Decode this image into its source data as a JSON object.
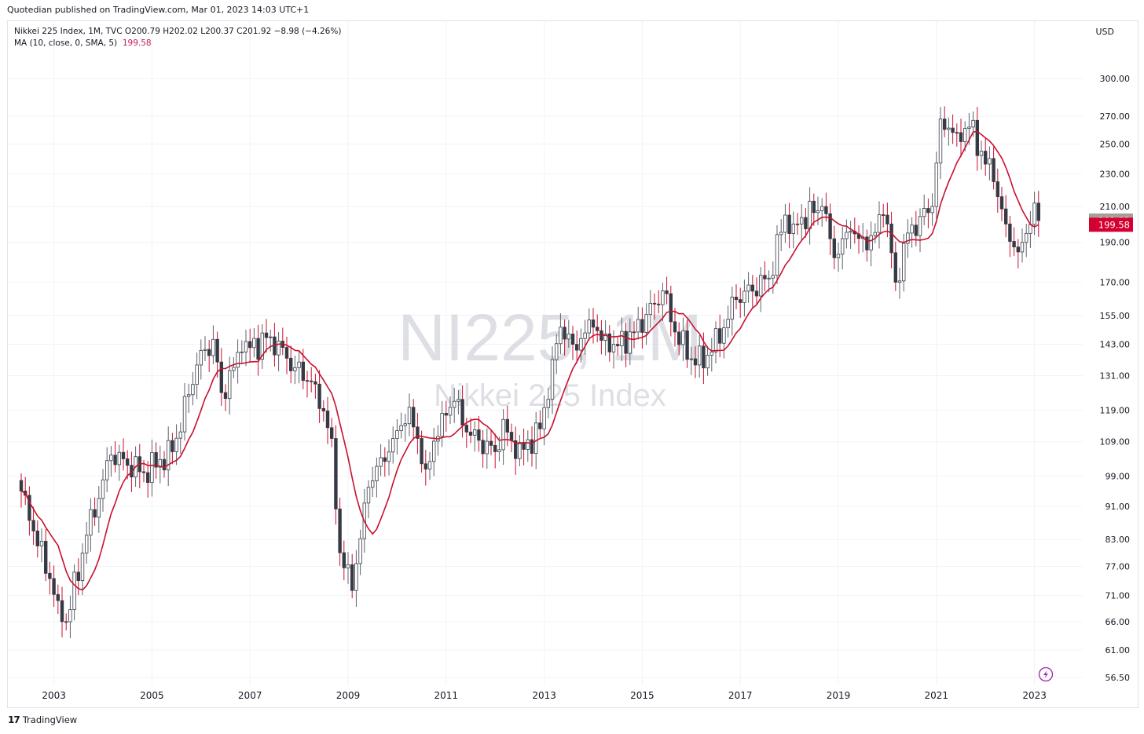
{
  "header": {
    "published_text": "Quotedian published on TradingView.com, Mar 01, 2023 14:03 UTC+1"
  },
  "legend": {
    "ohlc_line": "Nikkei 225 Index, 1M, TVC  O200.79  H202.02  L200.37  C201.92  −8.98 (−4.26%)",
    "ma_label": "MA (10, close, 0, SMA, 5)",
    "ma_value": "199.58"
  },
  "currency": "USD",
  "watermark": {
    "symbol": "NI225, 1M",
    "name": "Nikkei 225 Index"
  },
  "footer": {
    "brand": "TradingView",
    "brand_mark": "17"
  },
  "colors": {
    "candle": "#363a45",
    "wick": "#5d606b",
    "ma_line": "#c8102e",
    "price_tag": "#a59e96",
    "ma_tag": "#d50032",
    "grid": "#f0f3fa",
    "lightning": "#9c27b0"
  },
  "icons": {
    "replay": "lightning-icon"
  },
  "chart_data": {
    "type": "candlestick",
    "interval": "1M",
    "scale": "log",
    "y_axis_position": "right",
    "yticks": [
      "300.00",
      "270.00",
      "250.00",
      "230.00",
      "210.00",
      "190.00",
      "170.00",
      "155.00",
      "143.00",
      "131.00",
      "119.00",
      "109.00",
      "99.00",
      "91.00",
      "83.00",
      "77.00",
      "71.00",
      "66.00",
      "61.00",
      "56.50"
    ],
    "xticks": [
      "2003",
      "2005",
      "2007",
      "2009",
      "2011",
      "2013",
      "2015",
      "2017",
      "2019",
      "2021",
      "2023"
    ],
    "last_close": 201.92,
    "ma_last": 199.58,
    "anchors": [
      [
        "2002-05",
        95
      ],
      [
        "2002-08",
        85
      ],
      [
        "2003-02",
        70
      ],
      [
        "2003-04",
        66
      ],
      [
        "2003-09",
        84
      ],
      [
        "2004-03",
        105
      ],
      [
        "2004-11",
        100
      ],
      [
        "2005-06",
        106
      ],
      [
        "2005-12",
        135
      ],
      [
        "2006-04",
        145
      ],
      [
        "2006-06",
        125
      ],
      [
        "2006-11",
        140
      ],
      [
        "2007-06",
        146
      ],
      [
        "2007-12",
        134
      ],
      [
        "2008-05",
        128
      ],
      [
        "2008-09",
        110
      ],
      [
        "2008-11",
        80
      ],
      [
        "2009-02",
        72
      ],
      [
        "2009-06",
        96
      ],
      [
        "2009-12",
        110
      ],
      [
        "2010-04",
        120
      ],
      [
        "2010-08",
        101
      ],
      [
        "2010-12",
        118
      ],
      [
        "2011-03",
        122
      ],
      [
        "2011-06",
        112
      ],
      [
        "2012-01",
        106
      ],
      [
        "2012-03",
        116
      ],
      [
        "2012-06",
        104
      ],
      [
        "2012-12",
        113
      ],
      [
        "2013-05",
        150
      ],
      [
        "2013-08",
        143
      ],
      [
        "2014-01",
        150
      ],
      [
        "2014-05",
        140
      ],
      [
        "2014-11",
        148
      ],
      [
        "2015-04",
        160
      ],
      [
        "2015-06",
        166
      ],
      [
        "2015-09",
        148
      ],
      [
        "2016-02",
        135
      ],
      [
        "2016-06",
        140
      ],
      [
        "2016-12",
        162
      ],
      [
        "2017-08",
        172
      ],
      [
        "2017-12",
        205
      ],
      [
        "2018-02",
        200
      ],
      [
        "2018-09",
        210
      ],
      [
        "2018-12",
        182
      ],
      [
        "2019-04",
        196
      ],
      [
        "2019-08",
        186
      ],
      [
        "2019-12",
        205
      ],
      [
        "2020-01",
        200
      ],
      [
        "2020-03",
        170
      ],
      [
        "2020-06",
        195
      ],
      [
        "2020-12",
        210
      ],
      [
        "2021-02",
        268
      ],
      [
        "2021-06",
        258
      ],
      [
        "2021-09",
        262
      ],
      [
        "2021-12",
        245
      ],
      [
        "2022-03",
        225
      ],
      [
        "2022-06",
        200
      ],
      [
        "2022-09",
        185
      ],
      [
        "2022-10",
        190
      ],
      [
        "2023-01",
        212
      ],
      [
        "2023-02",
        201.92
      ]
    ]
  }
}
